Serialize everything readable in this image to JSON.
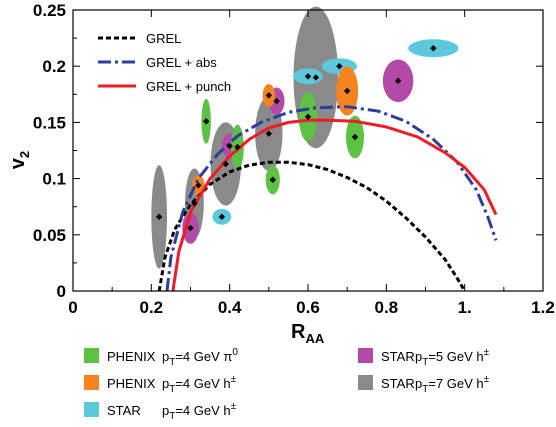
{
  "chart_data": {
    "type": "scatter",
    "xlabel": "R",
    "xlabel_sub": "AA",
    "ylabel": "v",
    "ylabel_sub": "2",
    "xlim": [
      0,
      1.2
    ],
    "ylim": [
      0,
      0.25
    ],
    "x_ticks": [
      0,
      0.2,
      0.4,
      0.6,
      0.8,
      1,
      1.2
    ],
    "x_tick_labels": [
      "0",
      "0.2",
      "0.4",
      "0.6",
      "0.8",
      "1.",
      "1.2"
    ],
    "y_ticks": [
      0,
      0.05,
      0.1,
      0.15,
      0.2,
      0.25
    ],
    "y_tick_labels": [
      "0",
      "0.05",
      "0.1",
      "0.15",
      "0.2",
      "0.25"
    ],
    "curves": [
      {
        "name": "GREL",
        "color": "#000000",
        "style": "dotted",
        "points": [
          [
            0.22,
            0
          ],
          [
            0.235,
            0.03
          ],
          [
            0.26,
            0.055
          ],
          [
            0.3,
            0.077
          ],
          [
            0.35,
            0.095
          ],
          [
            0.4,
            0.106
          ],
          [
            0.45,
            0.112
          ],
          [
            0.5,
            0.1145
          ],
          [
            0.55,
            0.1145
          ],
          [
            0.6,
            0.1125
          ],
          [
            0.65,
            0.108
          ],
          [
            0.7,
            0.101
          ],
          [
            0.75,
            0.092
          ],
          [
            0.8,
            0.08
          ],
          [
            0.85,
            0.065
          ],
          [
            0.9,
            0.048
          ],
          [
            0.95,
            0.028
          ],
          [
            0.98,
            0.012
          ],
          [
            1.0,
            0
          ]
        ]
      },
      {
        "name": "GREL + abs",
        "color": "#2c3e9c",
        "style": "dashdot",
        "points": [
          [
            0.24,
            0
          ],
          [
            0.25,
            0.03
          ],
          [
            0.28,
            0.07
          ],
          [
            0.32,
            0.1
          ],
          [
            0.37,
            0.122
          ],
          [
            0.42,
            0.138
          ],
          [
            0.48,
            0.15
          ],
          [
            0.55,
            0.159
          ],
          [
            0.62,
            0.163
          ],
          [
            0.7,
            0.164
          ],
          [
            0.78,
            0.16
          ],
          [
            0.85,
            0.151
          ],
          [
            0.92,
            0.135
          ],
          [
            0.98,
            0.115
          ],
          [
            1.03,
            0.09
          ],
          [
            1.06,
            0.065
          ],
          [
            1.08,
            0.045
          ]
        ]
      },
      {
        "name": "GREL + punch",
        "color": "#ee1c25",
        "style": "solid",
        "points": [
          [
            0.255,
            0
          ],
          [
            0.27,
            0.035
          ],
          [
            0.3,
            0.07
          ],
          [
            0.35,
            0.1
          ],
          [
            0.4,
            0.12
          ],
          [
            0.45,
            0.135
          ],
          [
            0.5,
            0.145
          ],
          [
            0.55,
            0.15
          ],
          [
            0.6,
            0.152
          ],
          [
            0.65,
            0.152
          ],
          [
            0.72,
            0.151
          ],
          [
            0.8,
            0.146
          ],
          [
            0.88,
            0.137
          ],
          [
            0.95,
            0.123
          ],
          [
            1.0,
            0.11
          ],
          [
            1.05,
            0.09
          ],
          [
            1.08,
            0.068
          ]
        ]
      }
    ],
    "points": [
      {
        "group": "STAR pT=7",
        "x": 0.22,
        "y": 0.066,
        "rx": 0.02,
        "ry": 0.046
      },
      {
        "group": "STAR pT=7",
        "x": 0.31,
        "y": 0.078,
        "rx": 0.024,
        "ry": 0.031
      },
      {
        "group": "STAR pT=7",
        "x": 0.39,
        "y": 0.113,
        "rx": 0.039,
        "ry": 0.037
      },
      {
        "group": "STAR pT=7",
        "x": 0.5,
        "y": 0.14,
        "rx": 0.035,
        "ry": 0.033
      },
      {
        "group": "STAR pT=7",
        "x": 0.62,
        "y": 0.19,
        "rx": 0.057,
        "ry": 0.063
      },
      {
        "group": "STAR pT=5",
        "x": 0.3,
        "y": 0.056,
        "rx": 0.021,
        "ry": 0.014
      },
      {
        "group": "STAR pT=5",
        "x": 0.4,
        "y": 0.129,
        "rx": 0.02,
        "ry": 0.011
      },
      {
        "group": "STAR pT=5",
        "x": 0.52,
        "y": 0.169,
        "rx": 0.02,
        "ry": 0.012
      },
      {
        "group": "STAR pT=5",
        "x": 0.83,
        "y": 0.187,
        "rx": 0.039,
        "ry": 0.019
      },
      {
        "group": "STAR pT=4",
        "x": 0.38,
        "y": 0.066,
        "rx": 0.024,
        "ry": 0.007
      },
      {
        "group": "STAR pT=4",
        "x": 0.6,
        "y": 0.191,
        "rx": 0.038,
        "ry": 0.007
      },
      {
        "group": "STAR pT=4",
        "x": 0.68,
        "y": 0.2,
        "rx": 0.045,
        "ry": 0.007
      },
      {
        "group": "STAR pT=4",
        "x": 0.92,
        "y": 0.216,
        "rx": 0.064,
        "ry": 0.008
      },
      {
        "group": "PHENIX h",
        "x": 0.32,
        "y": 0.094,
        "rx": 0.016,
        "ry": 0.009
      },
      {
        "group": "PHENIX h",
        "x": 0.5,
        "y": 0.174,
        "rx": 0.016,
        "ry": 0.01
      },
      {
        "group": "PHENIX h",
        "x": 0.7,
        "y": 0.178,
        "rx": 0.028,
        "ry": 0.022
      },
      {
        "group": "PHENIX pi0",
        "x": 0.34,
        "y": 0.151,
        "rx": 0.012,
        "ry": 0.02
      },
      {
        "group": "PHENIX pi0",
        "x": 0.42,
        "y": 0.128,
        "rx": 0.016,
        "ry": 0.02
      },
      {
        "group": "PHENIX pi0",
        "x": 0.51,
        "y": 0.099,
        "rx": 0.018,
        "ry": 0.013
      },
      {
        "group": "PHENIX pi0",
        "x": 0.6,
        "y": 0.155,
        "rx": 0.023,
        "ry": 0.022
      },
      {
        "group": "PHENIX pi0",
        "x": 0.72,
        "y": 0.137,
        "rx": 0.023,
        "ry": 0.019
      }
    ],
    "group_colors": {
      "PHENIX pi0": "#5dc143",
      "PHENIX h": "#f5831f",
      "STAR pT=4": "#5bc8dc",
      "STAR pT=5": "#b44aa8",
      "STAR pT=7": "#8a8a8a"
    }
  },
  "legend": [
    {
      "label": "GREL",
      "color": "#000000",
      "style": "dotted"
    },
    {
      "label": "GREL + abs",
      "color": "#2c3e9c",
      "style": "dashdot"
    },
    {
      "label": "GREL + punch",
      "color": "#ee1c25",
      "style": "solid"
    }
  ],
  "bottom_legend": [
    {
      "exp": "PHENIX",
      "kin": "p",
      "sub": "T",
      "rest": "=4 GeV π",
      "sup": "0",
      "color": "#5dc143"
    },
    {
      "exp": "PHENIX",
      "kin": "p",
      "sub": "T",
      "rest": "=4 GeV h",
      "sup": "±",
      "color": "#f5831f"
    },
    {
      "exp": "STAR",
      "kin": "p",
      "sub": "T",
      "rest": "=4 GeV h",
      "sup": "±",
      "color": "#5bc8dc"
    },
    {
      "exp": "STAR",
      "kin": "p",
      "sub": "T",
      "rest": "=5 GeV h",
      "sup": "±",
      "color": "#b44aa8"
    },
    {
      "exp": "STAR",
      "kin": "p",
      "sub": "T",
      "rest": "=7 GeV h",
      "sup": "±",
      "color": "#8a8a8a"
    }
  ]
}
